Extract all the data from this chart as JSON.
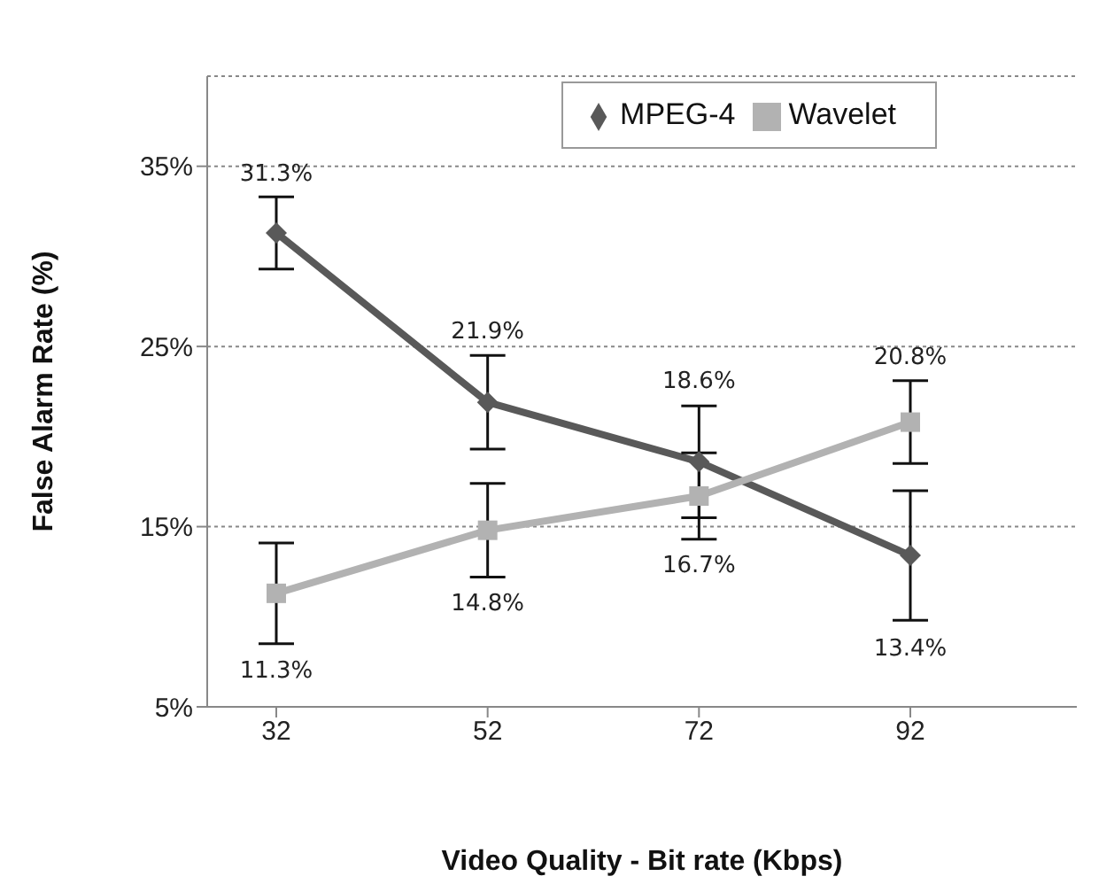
{
  "chart_data": {
    "type": "line",
    "xlabel": "Video Quality - Bit rate (Kbps)",
    "ylabel": "False Alarm Rate (%)",
    "categories": [
      "32",
      "52",
      "72",
      "92"
    ],
    "series": [
      {
        "name": "MPEG-4",
        "color": "#595959",
        "marker": "diamond",
        "values": [
          31.3,
          21.9,
          18.6,
          13.4
        ],
        "errors": [
          2.0,
          2.6,
          3.1,
          3.6
        ],
        "value_labels": [
          "31.3%",
          "21.9%",
          "18.6%",
          "13.4%"
        ]
      },
      {
        "name": "Wavelet",
        "color": "#b2b2b2",
        "marker": "square",
        "values": [
          11.3,
          14.8,
          16.7,
          20.8
        ],
        "errors": [
          2.8,
          2.6,
          2.4,
          2.3
        ],
        "value_labels": [
          "11.3%",
          "14.8%",
          "16.7%",
          "20.8%"
        ]
      }
    ],
    "ylim": [
      5,
      40
    ],
    "yticks": [
      {
        "value": 5,
        "label": "5%"
      },
      {
        "value": 15,
        "label": "15%"
      },
      {
        "value": 25,
        "label": "25%"
      },
      {
        "value": 35,
        "label": "35%"
      }
    ],
    "grid": "y",
    "legend": "top right",
    "line_style": "solid"
  }
}
